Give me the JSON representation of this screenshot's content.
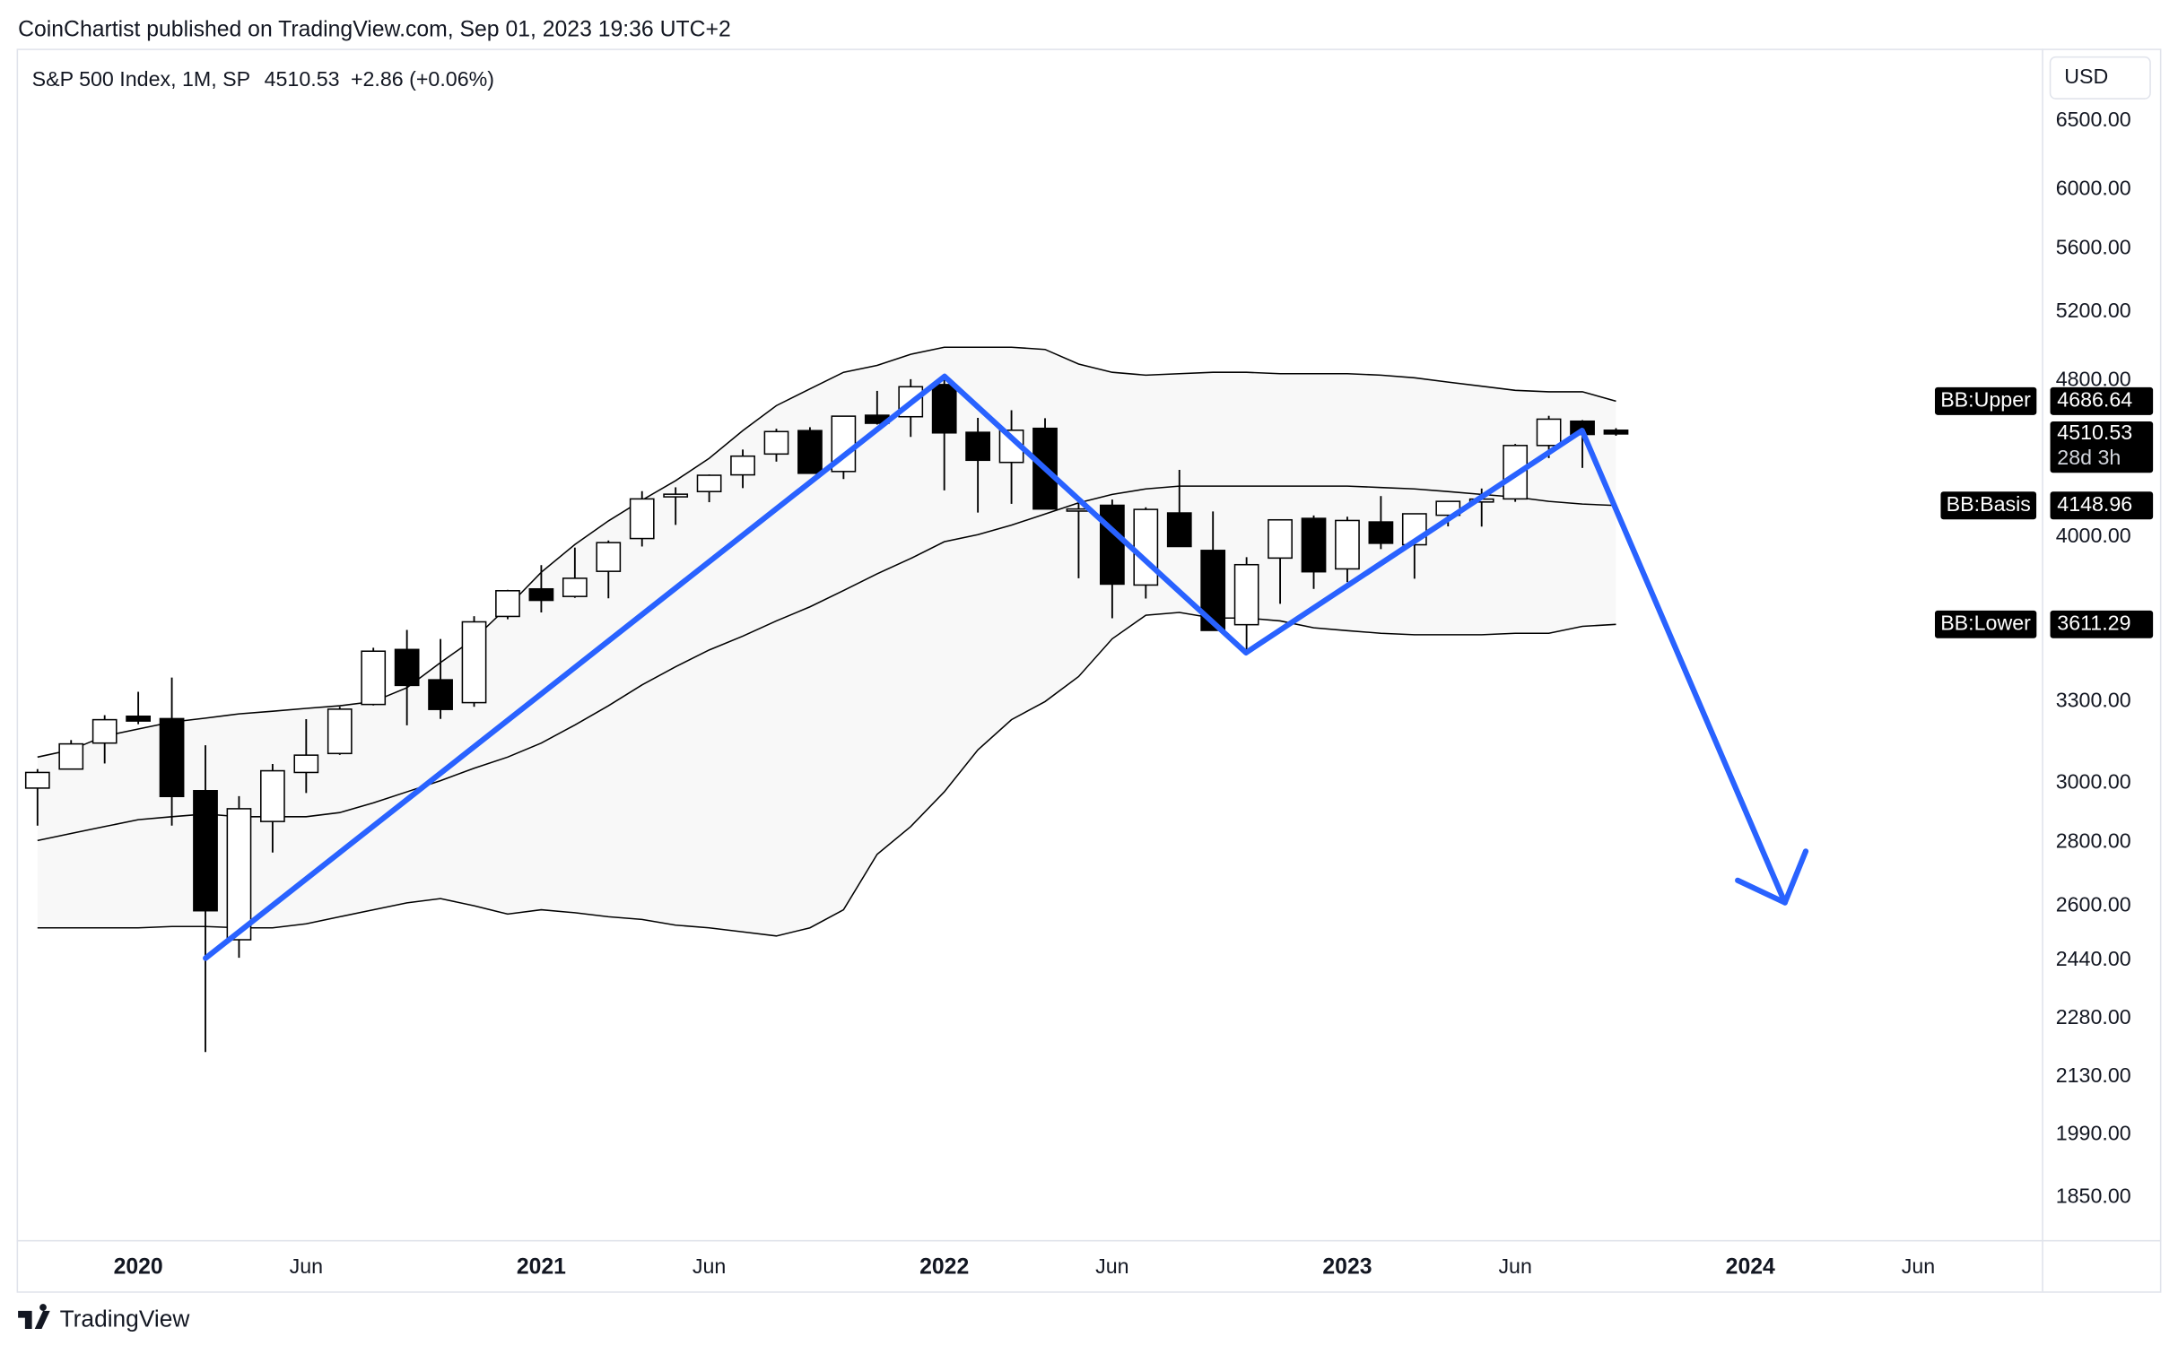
{
  "published": "CoinChartist published on TradingView.com, Sep 01, 2023 19:36 UTC+2",
  "brand": "TradingView",
  "chart_data": {
    "type": "candlestick",
    "title": "S&P 500 Index, 1M, SP",
    "change": "+2.86 (+0.06%)",
    "currency": "USD",
    "countdown": "28d 3h",
    "log_scale": true,
    "grid": false,
    "up_color": "#ffffff",
    "down_color": "#000000",
    "x": [
      "2019-10",
      "2019-11",
      "2019-12",
      "2020-01",
      "2020-02",
      "2020-03",
      "2020-04",
      "2020-05",
      "2020-06",
      "2020-07",
      "2020-08",
      "2020-09",
      "2020-10",
      "2020-11",
      "2020-12",
      "2021-01",
      "2021-02",
      "2021-03",
      "2021-04",
      "2021-05",
      "2021-06",
      "2021-07",
      "2021-08",
      "2021-09",
      "2021-10",
      "2021-11",
      "2021-12",
      "2022-01",
      "2022-02",
      "2022-03",
      "2022-04",
      "2022-05",
      "2022-06",
      "2022-07",
      "2022-08",
      "2022-09",
      "2022-10",
      "2022-11",
      "2022-12",
      "2023-01",
      "2023-02",
      "2023-03",
      "2023-04",
      "2023-05",
      "2023-06",
      "2023-07",
      "2023-08",
      "2023-09"
    ],
    "open": [
      2983,
      3050,
      3144,
      3244,
      3235,
      2974,
      2499,
      2869,
      3038,
      3106,
      3289,
      3507,
      3385,
      3296,
      3645,
      3764,
      3731,
      3842,
      3992,
      4191,
      4217,
      4300,
      4406,
      4528,
      4317,
      4610,
      4602,
      4778,
      4519,
      4363,
      4540,
      4130,
      4150,
      3781,
      4113,
      3937,
      3610,
      3902,
      4087,
      3853,
      4070,
      3963,
      4102,
      4166,
      4181,
      4450,
      4578,
      4530
    ],
    "high": [
      3050,
      3155,
      3248,
      3338,
      3394,
      3136,
      2955,
      3068,
      3233,
      3280,
      3514,
      3588,
      3550,
      3646,
      3760,
      3870,
      3950,
      3983,
      4219,
      4238,
      4302,
      4429,
      4538,
      4546,
      4608,
      4743,
      4808,
      4819,
      4596,
      4637,
      4594,
      4169,
      4178,
      4140,
      4325,
      4120,
      3906,
      4080,
      4101,
      4095,
      4195,
      4110,
      4170,
      4232,
      4458,
      4607,
      4584,
      4541
    ],
    "low": [
      2855,
      3050,
      3070,
      3214,
      2855,
      2192,
      2447,
      2767,
      2966,
      3101,
      3285,
      3210,
      3234,
      3280,
      3633,
      3662,
      3725,
      3723,
      3955,
      4056,
      4165,
      4234,
      4367,
      4306,
      4279,
      4560,
      4495,
      4223,
      4115,
      4157,
      4131,
      3811,
      3637,
      3722,
      3955,
      3585,
      3492,
      3699,
      3764,
      3794,
      3943,
      3809,
      4049,
      4048,
      4167,
      4385,
      4335,
      4501
    ],
    "close": [
      3038,
      3141,
      3231,
      3226,
      2954,
      2585,
      2912,
      3044,
      3100,
      3271,
      3500,
      3363,
      3270,
      3622,
      3756,
      3714,
      3811,
      3973,
      4181,
      4204,
      4298,
      4395,
      4523,
      4308,
      4605,
      4567,
      4766,
      4516,
      4374,
      4530,
      4132,
      4132,
      3785,
      4130,
      3955,
      3586,
      3872,
      4080,
      3840,
      4077,
      3970,
      4109,
      4169,
      4180,
      4450,
      4589,
      4507.67,
      4510.53
    ],
    "bands": [
      {
        "name": "BB:Upper",
        "color": "#000000",
        "values": [
          3093,
          3119,
          3170,
          3196,
          3222,
          3237,
          3253,
          3263,
          3274,
          3284,
          3300,
          3354,
          3454,
          3551,
          3686,
          3838,
          3964,
          4075,
          4175,
          4271,
          4384,
          4528,
          4662,
          4754,
          4847,
          4886,
          4950,
          4991,
          4991,
          4991,
          4978,
          4894,
          4847,
          4831,
          4839,
          4847,
          4847,
          4839,
          4839,
          4839,
          4831,
          4816,
          4792,
          4769,
          4746,
          4738,
          4738,
          4686.64
        ]
      },
      {
        "name": "BB:Basis",
        "color": "#000000",
        "values": [
          2806,
          2829,
          2852,
          2875,
          2885,
          2894,
          2885,
          2885,
          2885,
          2899,
          2932,
          2970,
          3009,
          3053,
          3093,
          3144,
          3211,
          3284,
          3365,
          3437,
          3505,
          3562,
          3626,
          3686,
          3757,
          3831,
          3900,
          3977,
          4010,
          4055,
          4108,
          4162,
          4203,
          4230,
          4244,
          4244,
          4244,
          4244,
          4244,
          4244,
          4237,
          4230,
          4217,
          4203,
          4190,
          4169,
          4156,
          4148.96
        ]
      },
      {
        "name": "BB:Lower",
        "color": "#000000",
        "values": [
          2534,
          2534,
          2534,
          2534,
          2538,
          2538,
          2534,
          2534,
          2546,
          2567,
          2588,
          2609,
          2622,
          2600,
          2575,
          2588,
          2579,
          2567,
          2559,
          2542,
          2534,
          2522,
          2510,
          2534,
          2588,
          2761,
          2852,
          2970,
          3119,
          3231,
          3300,
          3398,
          3551,
          3650,
          3662,
          3638,
          3638,
          3626,
          3597,
          3585,
          3574,
          3568,
          3568,
          3568,
          3574,
          3574,
          3603,
          3611.29
        ]
      }
    ],
    "band_fill": "#f8f8f8",
    "xlim": [
      "2019-10",
      "2024-06"
    ],
    "xticks": [
      {
        "value": "2020-01",
        "label": "2020"
      },
      {
        "value": "2020-06",
        "label": "Jun"
      },
      {
        "value": "2021-01",
        "label": "2021"
      },
      {
        "value": "2021-06",
        "label": "Jun"
      },
      {
        "value": "2022-01",
        "label": "2022"
      },
      {
        "value": "2022-06",
        "label": "Jun"
      },
      {
        "value": "2023-01",
        "label": "2023"
      },
      {
        "value": "2023-06",
        "label": "Jun"
      },
      {
        "value": "2024-01",
        "label": "2024"
      },
      {
        "value": "2024-06",
        "label": "Jun"
      }
    ],
    "ylim": [
      1760,
      6628
    ],
    "yticks": [
      {
        "value": 6500,
        "label": "6500.00"
      },
      {
        "value": 6000,
        "label": "6000.00"
      },
      {
        "value": 5600,
        "label": "5600.00"
      },
      {
        "value": 5200,
        "label": "5200.00"
      },
      {
        "value": 4800,
        "label": "4800.00"
      },
      {
        "value": 4000,
        "label": "4000.00"
      },
      {
        "value": 3300,
        "label": "3300.00"
      },
      {
        "value": 3000,
        "label": "3000.00"
      },
      {
        "value": 2800,
        "label": "2800.00"
      },
      {
        "value": 2600,
        "label": "2600.00"
      },
      {
        "value": 2440,
        "label": "2440.00"
      },
      {
        "value": 2280,
        "label": "2280.00"
      },
      {
        "value": 2130,
        "label": "2130.00"
      },
      {
        "value": 1990,
        "label": "1990.00"
      },
      {
        "value": 1850,
        "label": "1850.00"
      }
    ]
  }
}
